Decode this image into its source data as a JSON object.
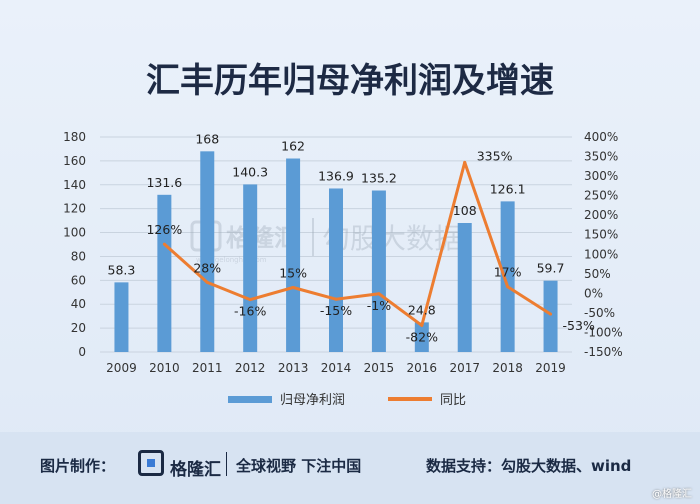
{
  "chart_data": {
    "type": "bar+line",
    "title": "汇丰历年归母净利润及增速",
    "categories": [
      "2009",
      "2010",
      "2011",
      "2012",
      "2013",
      "2014",
      "2015",
      "2016",
      "2017",
      "2018",
      "2019"
    ],
    "bar_series": {
      "name": "归母净利润",
      "values": [
        58.3,
        131.6,
        168,
        140.3,
        162,
        136.9,
        135.2,
        24.8,
        108,
        126.1,
        59.7
      ],
      "color": "#5b9bd5"
    },
    "line_series": {
      "name": "同比",
      "values": [
        null,
        126,
        28,
        -16,
        15,
        -15,
        -1,
        -82,
        335,
        17,
        -53
      ],
      "labels": [
        "",
        "126%",
        "28%",
        "-16%",
        "15%",
        "-15%",
        "-1%",
        "-82%",
        "335%",
        "17%",
        "-53%"
      ],
      "color": "#ed7d31"
    },
    "y_left": {
      "ylim": [
        0,
        180
      ],
      "ticks": [
        "0",
        "20",
        "40",
        "60",
        "80",
        "100",
        "120",
        "140",
        "160",
        "180"
      ]
    },
    "y_right": {
      "ylim": [
        -150,
        400
      ],
      "ticks": [
        "-150%",
        "-100%",
        "-50%",
        "0%",
        "50%",
        "100%",
        "150%",
        "200%",
        "250%",
        "300%",
        "350%",
        "400%"
      ]
    },
    "legend_position": "bottom",
    "grid": "horizontal"
  },
  "watermark": {
    "brand": "格隆汇",
    "sub": "www.gelonghui.com",
    "tag": "勾股大数据"
  },
  "footer": {
    "made_by": "图片制作：",
    "brand": "格隆汇",
    "slogan": "全球视野 下注中国",
    "source": "数据支持：勾股大数据、wind"
  },
  "corner": "@格隆汇"
}
